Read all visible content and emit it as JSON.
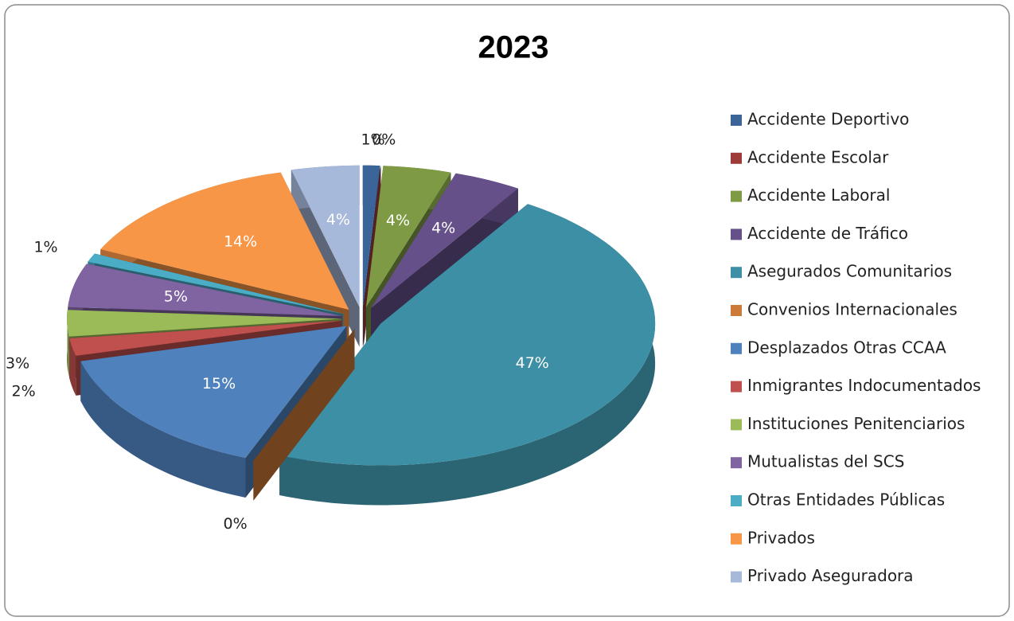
{
  "chart_data": {
    "type": "pie",
    "title": "2023",
    "categories": [
      "Accidente Deportivo",
      "Accidente Escolar",
      "Accidente Laboral",
      "Accidente de Tráfico",
      "Asegurados Comunitarios",
      "Convenios Internacionales",
      "Desplazados Otras CCAA",
      "Inmigrantes Indocumentados",
      "Instituciones Penitenciarios",
      "Mutualistas del SCS",
      "Otras Entidades Públicas",
      "Privados",
      "Privado Aseguradora"
    ],
    "values": [
      1,
      0,
      4,
      4,
      47,
      0,
      15,
      2,
      3,
      5,
      1,
      14,
      4
    ],
    "value_labels": [
      "1%",
      "0%",
      "4%",
      "4%",
      "47%",
      "0%",
      "15%",
      "2%",
      "3%",
      "5%",
      "1%",
      "14%",
      "4%"
    ],
    "colors": [
      "#3B6499",
      "#9E3A38",
      "#7E9A44",
      "#66508A",
      "#3D8FA5",
      "#CC7A37",
      "#4F81BD",
      "#C0504D",
      "#9BBB59",
      "#8064A2",
      "#4BACC6",
      "#F79646",
      "#A7B9DA"
    ],
    "legend": "right"
  }
}
